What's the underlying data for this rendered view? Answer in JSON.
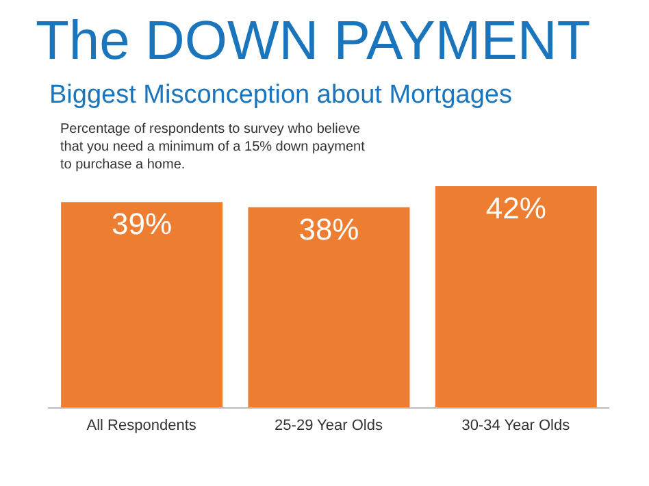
{
  "chart_data": {
    "type": "bar",
    "title": "The DOWN PAYMENT",
    "subtitle": "Biggest Misconception about Mortgages",
    "annotations": [
      "Percentage of respondents to survey who believe that you need a minimum of a 15% down payment to purchase a home."
    ],
    "categories": [
      "All Respondents",
      "25-29 Year Olds",
      "30-34 Year Olds"
    ],
    "values": [
      39,
      38,
      42
    ],
    "value_labels": [
      "39%",
      "38%",
      "42%"
    ],
    "color": "#ed7d31",
    "tick_labels": "x"
  }
}
